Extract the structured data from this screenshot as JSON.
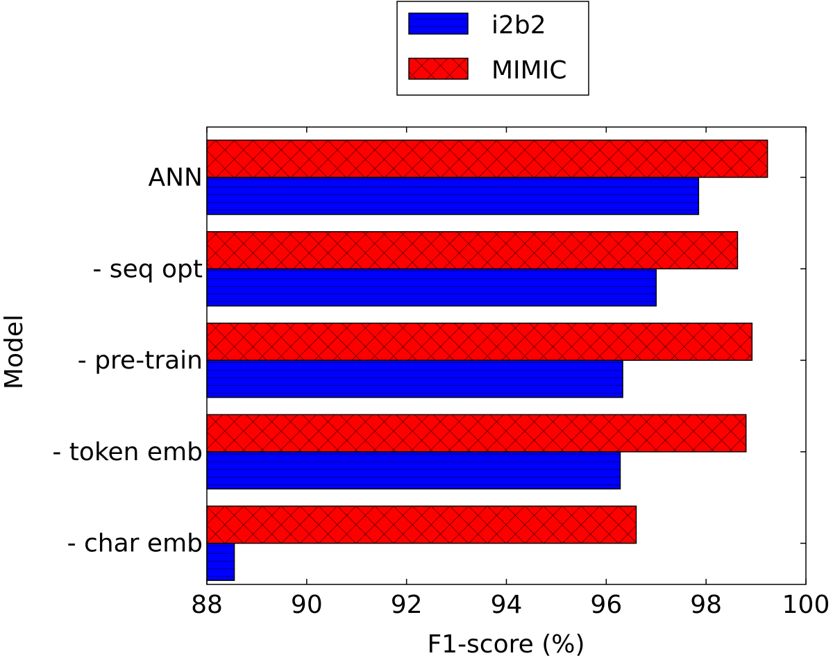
{
  "chart_data": {
    "type": "bar",
    "orientation": "horizontal",
    "title": "",
    "xlabel": "F1-score (%)",
    "ylabel": "Model",
    "xlim": [
      88,
      100
    ],
    "xticks": [
      "88",
      "90",
      "92",
      "94",
      "96",
      "98",
      "100"
    ],
    "categories": [
      "ANN",
      "- seq opt",
      "- pre-train",
      "- token emb",
      "- char emb"
    ],
    "series": [
      {
        "name": "i2b2",
        "color": "#0000ff",
        "hatch": "horizontal",
        "values": [
          97.85,
          97.0,
          96.33,
          96.28,
          88.55
        ]
      },
      {
        "name": "MIMIC",
        "color": "#ff0000",
        "hatch": "crosshatch",
        "values": [
          99.23,
          98.63,
          98.92,
          98.8,
          96.6
        ]
      }
    ],
    "legend": {
      "position": "top-center",
      "entries": [
        "i2b2",
        "MIMIC"
      ]
    },
    "grid": false
  }
}
